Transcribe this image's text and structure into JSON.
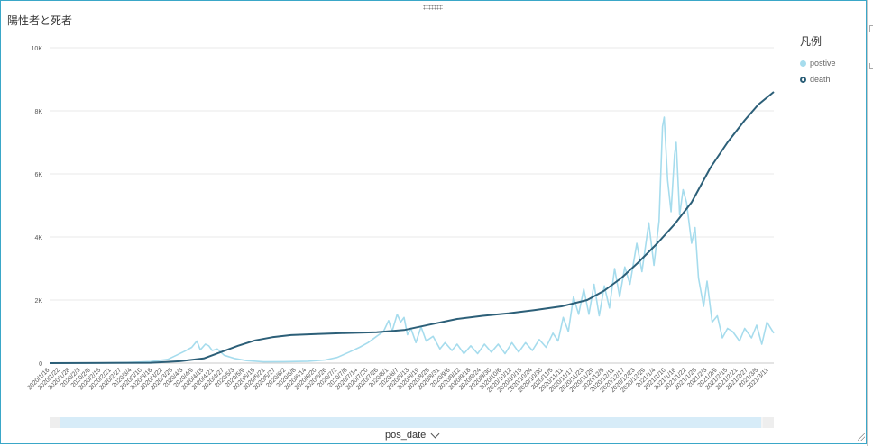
{
  "title": "陽性者と死者",
  "legend": {
    "title": "凡例",
    "items": [
      {
        "label": "postive",
        "color": "#a6dced"
      },
      {
        "label": "death",
        "color": "#2c5f78"
      }
    ]
  },
  "x_axis_field": "pos_date",
  "chart_data": {
    "type": "line",
    "title": "陽性者と死者",
    "xlabel": "pos_date",
    "ylabel": "",
    "ylim": [
      0,
      10000
    ],
    "yticks": [
      0,
      2000,
      4000,
      6000,
      8000,
      10000
    ],
    "ytick_labels": [
      "0",
      "2K",
      "4K",
      "6K",
      "8K",
      "10K"
    ],
    "grid": true,
    "legend_position": "right",
    "x_start": "2020-01-16",
    "x_end": "2021-03-14",
    "x_tick_labels": [
      "2020/1/16",
      "2020/1/22",
      "2020/1/28",
      "2020/2/3",
      "2020/2/9",
      "2020/2/15",
      "2020/2/21",
      "2020/2/27",
      "2020/3/4",
      "2020/3/10",
      "2020/3/16",
      "2020/3/22",
      "2020/3/28",
      "2020/4/3",
      "2020/4/9",
      "2020/4/15",
      "2020/4/21",
      "2020/4/27",
      "2020/5/3",
      "2020/5/9",
      "2020/5/15",
      "2020/5/21",
      "2020/5/27",
      "2020/6/2",
      "2020/6/8",
      "2020/6/14",
      "2020/6/20",
      "2020/6/26",
      "2020/7/2",
      "2020/7/8",
      "2020/7/14",
      "2020/7/20",
      "2020/7/26",
      "2020/8/1",
      "2020/8/7",
      "2020/8/13",
      "2020/8/19",
      "2020/8/25",
      "2020/8/31",
      "2020/9/6",
      "2020/9/12",
      "2020/9/18",
      "2020/9/24",
      "2020/9/30",
      "2020/10/6",
      "2020/10/12",
      "2020/10/18",
      "2020/10/24",
      "2020/10/30",
      "2020/11/5",
      "2020/11/11",
      "2020/11/17",
      "2020/11/23",
      "2020/11/29",
      "2020/12/5",
      "2020/12/11",
      "2020/12/17",
      "2020/12/23",
      "2020/12/29",
      "2021/1/4",
      "2021/1/10",
      "2021/1/16",
      "2021/1/22",
      "2021/1/28",
      "2021/2/3",
      "2021/2/9",
      "2021/2/15",
      "2021/2/21",
      "2021/2/27",
      "2021/3/5",
      "2021/3/11"
    ],
    "series": [
      {
        "name": "postive",
        "color": "#a6dced",
        "points": [
          [
            "2020-01-16",
            0
          ],
          [
            "2020-02-15",
            5
          ],
          [
            "2020-03-01",
            20
          ],
          [
            "2020-03-15",
            50
          ],
          [
            "2020-03-25",
            120
          ],
          [
            "2020-03-30",
            250
          ],
          [
            "2020-04-04",
            380
          ],
          [
            "2020-04-08",
            500
          ],
          [
            "2020-04-11",
            700
          ],
          [
            "2020-04-13",
            420
          ],
          [
            "2020-04-16",
            600
          ],
          [
            "2020-04-18",
            550
          ],
          [
            "2020-04-20",
            400
          ],
          [
            "2020-04-23",
            450
          ],
          [
            "2020-04-27",
            250
          ],
          [
            "2020-05-03",
            150
          ],
          [
            "2020-05-10",
            80
          ],
          [
            "2020-05-20",
            40
          ],
          [
            "2020-06-01",
            45
          ],
          [
            "2020-06-15",
            60
          ],
          [
            "2020-06-25",
            100
          ],
          [
            "2020-07-02",
            180
          ],
          [
            "2020-07-09",
            350
          ],
          [
            "2020-07-15",
            500
          ],
          [
            "2020-07-20",
            650
          ],
          [
            "2020-07-25",
            850
          ],
          [
            "2020-07-29",
            1000
          ],
          [
            "2020-08-01",
            1350
          ],
          [
            "2020-08-03",
            1000
          ],
          [
            "2020-08-06",
            1550
          ],
          [
            "2020-08-08",
            1300
          ],
          [
            "2020-08-10",
            1450
          ],
          [
            "2020-08-12",
            900
          ],
          [
            "2020-08-14",
            1100
          ],
          [
            "2020-08-17",
            650
          ],
          [
            "2020-08-20",
            1150
          ],
          [
            "2020-08-23",
            700
          ],
          [
            "2020-08-27",
            850
          ],
          [
            "2020-08-31",
            450
          ],
          [
            "2020-09-03",
            650
          ],
          [
            "2020-09-07",
            400
          ],
          [
            "2020-09-10",
            600
          ],
          [
            "2020-09-14",
            300
          ],
          [
            "2020-09-18",
            550
          ],
          [
            "2020-09-22",
            300
          ],
          [
            "2020-09-26",
            600
          ],
          [
            "2020-09-30",
            350
          ],
          [
            "2020-10-04",
            600
          ],
          [
            "2020-10-08",
            300
          ],
          [
            "2020-10-12",
            650
          ],
          [
            "2020-10-16",
            350
          ],
          [
            "2020-10-20",
            650
          ],
          [
            "2020-10-24",
            400
          ],
          [
            "2020-10-28",
            750
          ],
          [
            "2020-11-01",
            500
          ],
          [
            "2020-11-05",
            950
          ],
          [
            "2020-11-08",
            700
          ],
          [
            "2020-11-11",
            1450
          ],
          [
            "2020-11-14",
            1000
          ],
          [
            "2020-11-17",
            2100
          ],
          [
            "2020-11-20",
            1550
          ],
          [
            "2020-11-23",
            2350
          ],
          [
            "2020-11-26",
            1550
          ],
          [
            "2020-11-29",
            2500
          ],
          [
            "2020-12-02",
            1500
          ],
          [
            "2020-12-05",
            2450
          ],
          [
            "2020-12-08",
            1750
          ],
          [
            "2020-12-11",
            3000
          ],
          [
            "2020-12-14",
            2100
          ],
          [
            "2020-12-17",
            3050
          ],
          [
            "2020-12-20",
            2500
          ],
          [
            "2020-12-24",
            3800
          ],
          [
            "2020-12-27",
            2900
          ],
          [
            "2020-12-31",
            4450
          ],
          [
            "2021-01-03",
            3100
          ],
          [
            "2021-01-06",
            4500
          ],
          [
            "2021-01-08",
            7500
          ],
          [
            "2021-01-09",
            7800
          ],
          [
            "2021-01-11",
            5800
          ],
          [
            "2021-01-13",
            4800
          ],
          [
            "2021-01-15",
            6600
          ],
          [
            "2021-01-16",
            7000
          ],
          [
            "2021-01-18",
            4700
          ],
          [
            "2021-01-20",
            5500
          ],
          [
            "2021-01-22",
            5100
          ],
          [
            "2021-01-25",
            3800
          ],
          [
            "2021-01-27",
            4300
          ],
          [
            "2021-01-29",
            2700
          ],
          [
            "2021-02-01",
            1800
          ],
          [
            "2021-02-03",
            2600
          ],
          [
            "2021-02-06",
            1300
          ],
          [
            "2021-02-09",
            1500
          ],
          [
            "2021-02-12",
            800
          ],
          [
            "2021-02-15",
            1100
          ],
          [
            "2021-02-18",
            1000
          ],
          [
            "2021-02-22",
            700
          ],
          [
            "2021-02-25",
            1100
          ],
          [
            "2021-03-01",
            800
          ],
          [
            "2021-03-04",
            1200
          ],
          [
            "2021-03-07",
            600
          ],
          [
            "2021-03-10",
            1300
          ],
          [
            "2021-03-14",
            950
          ]
        ]
      },
      {
        "name": "death",
        "color": "#2c5f78",
        "points": [
          [
            "2020-01-16",
            0
          ],
          [
            "2020-03-15",
            10
          ],
          [
            "2020-04-01",
            60
          ],
          [
            "2020-04-15",
            150
          ],
          [
            "2020-04-25",
            350
          ],
          [
            "2020-05-05",
            550
          ],
          [
            "2020-05-15",
            720
          ],
          [
            "2020-05-25",
            820
          ],
          [
            "2020-06-05",
            890
          ],
          [
            "2020-06-20",
            920
          ],
          [
            "2020-07-05",
            950
          ],
          [
            "2020-07-25",
            980
          ],
          [
            "2020-08-10",
            1050
          ],
          [
            "2020-08-25",
            1220
          ],
          [
            "2020-09-10",
            1400
          ],
          [
            "2020-09-25",
            1500
          ],
          [
            "2020-10-10",
            1580
          ],
          [
            "2020-10-25",
            1680
          ],
          [
            "2020-11-10",
            1800
          ],
          [
            "2020-11-25",
            2000
          ],
          [
            "2020-12-05",
            2300
          ],
          [
            "2020-12-15",
            2700
          ],
          [
            "2020-12-25",
            3200
          ],
          [
            "2021-01-05",
            3800
          ],
          [
            "2021-01-15",
            4400
          ],
          [
            "2021-01-25",
            5100
          ],
          [
            "2021-02-05",
            6200
          ],
          [
            "2021-02-15",
            7000
          ],
          [
            "2021-02-25",
            7700
          ],
          [
            "2021-03-05",
            8200
          ],
          [
            "2021-03-14",
            8600
          ]
        ]
      }
    ]
  }
}
